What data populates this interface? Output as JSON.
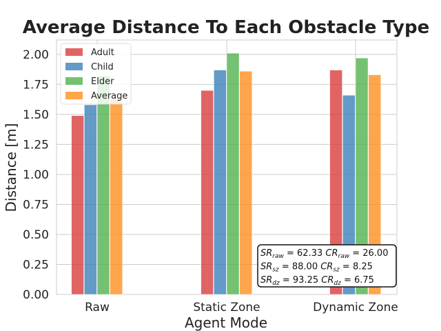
{
  "chart_data": {
    "type": "bar",
    "title": "Average Distance To Each Obstacle Type",
    "xlabel": "Agent Mode",
    "ylabel": "Distance [m]",
    "categories": [
      "Raw",
      "Static Zone",
      "Dynamic Zone"
    ],
    "series": [
      {
        "name": "Adult",
        "color": "#d9383a",
        "values": [
          1.49,
          1.7,
          1.87
        ]
      },
      {
        "name": "Child",
        "color": "#377eb8",
        "values": [
          1.58,
          1.87,
          1.66
        ]
      },
      {
        "name": "Elder",
        "color": "#4daf4a",
        "values": [
          1.82,
          2.01,
          1.97
        ]
      },
      {
        "name": "Average",
        "color": "#ff8c1a",
        "values": [
          1.63,
          1.86,
          1.83
        ]
      }
    ],
    "ylim": [
      0,
      2.12
    ],
    "yticks": [
      "0.00",
      "0.25",
      "0.50",
      "0.75",
      "1.00",
      "1.25",
      "1.50",
      "1.75",
      "2.00"
    ],
    "grid": true,
    "legend_position": "top-left",
    "annotation": {
      "position": "bottom-right",
      "lines": [
        {
          "sr_label": "SR",
          "sr_sub": "raw",
          "sr_value": "62.33",
          "cr_label": "CR",
          "cr_sub": "raw",
          "cr_value": "26.00"
        },
        {
          "sr_label": "SR",
          "sr_sub": "sz",
          "sr_value": "88.00",
          "cr_label": "CR",
          "cr_sub": "sz",
          "cr_value": "8.25"
        },
        {
          "sr_label": "SR",
          "sr_sub": "dz",
          "sr_value": "93.25",
          "cr_label": "CR",
          "cr_sub": "dz",
          "cr_value": "6.75"
        }
      ]
    }
  }
}
